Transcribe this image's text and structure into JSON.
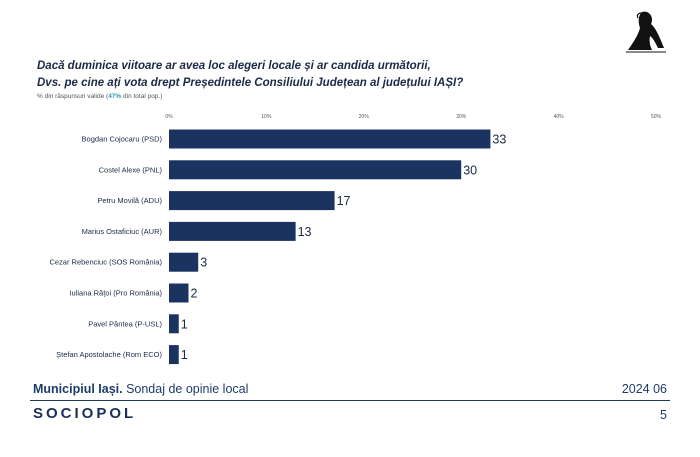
{
  "question": {
    "line1": "Dacă duminica viitoare ar avea loc alegeri locale și ar candida următorii,",
    "line2": "Dvs. pe cine ați vota drept Președintele Consiliului Județean al județului IAȘI?"
  },
  "subtitle": {
    "prefix": "% din răspunsuri valide (",
    "highlight": "47%",
    "suffix": " din total pop.)"
  },
  "chart_data": {
    "type": "bar",
    "orientation": "horizontal",
    "categories": [
      "Bogdan Cojocaru (PSD)",
      "Costel Alexe (PNL)",
      "Petru Movilă (ADU)",
      "Marius Ostaficiuc (AUR)",
      "Cezar Rebenciuc (SOS România)",
      "Iuliana Rățoi (Pro România)",
      "Pavel Pântea (P-USL)",
      "Ștefan Apostolache (Rom ECO)"
    ],
    "values": [
      33,
      30,
      17,
      13,
      3,
      2,
      1,
      1
    ],
    "xlim": [
      0,
      50
    ],
    "xticks": [
      "0%",
      "10%",
      "20%",
      "30%",
      "40%",
      "50%"
    ],
    "bar_color": "#1a3361",
    "grid": false,
    "legend": "none"
  },
  "footer": {
    "location_bold": "Municipiul Iași.",
    "location_rest": " Sondaj de opinie local",
    "date": "2024 06",
    "brand": "SOCIOPOL",
    "page": "5"
  }
}
